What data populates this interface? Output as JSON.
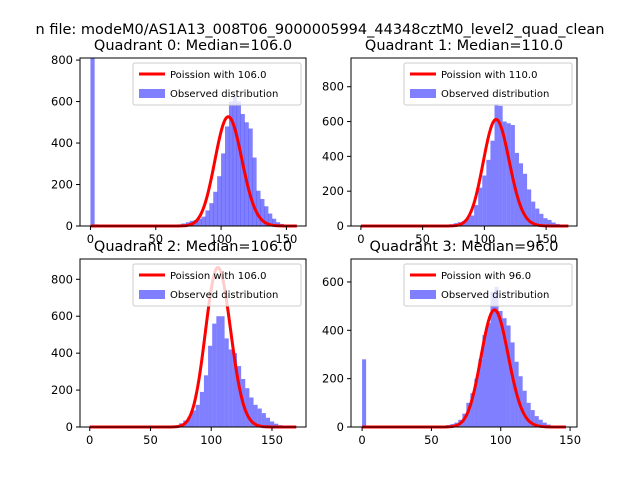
{
  "figure": {
    "suptitle": "n file: modeM0/AS1A13_008T06_9000005994_44348cztM0_level2_quad_clean"
  },
  "colors": {
    "fit_line": "#ff0000",
    "histogram": "#0000ff",
    "axes": "#000000"
  },
  "chart_data": [
    {
      "type": "bar",
      "title": "Quadrant 0: Median=106.0",
      "xlim": [
        -8,
        165
      ],
      "ylim": [
        0,
        810
      ],
      "xticks": [
        0,
        50,
        100,
        150
      ],
      "yticks": [
        0,
        200,
        400,
        600,
        800
      ],
      "legend_position": "top-right",
      "legend": [
        "Poission with 106.0",
        "Observed distribution"
      ],
      "bin_width": 3.2,
      "bins": [
        [
          0,
          810
        ],
        [
          3.2,
          8
        ],
        [
          60,
          3
        ],
        [
          63.2,
          5
        ],
        [
          66.4,
          8
        ],
        [
          69.6,
          12
        ],
        [
          73,
          18
        ],
        [
          76,
          25
        ],
        [
          79,
          28
        ],
        [
          82,
          35
        ],
        [
          85,
          45
        ],
        [
          88,
          75
        ],
        [
          91,
          110
        ],
        [
          94,
          165
        ],
        [
          97,
          240
        ],
        [
          100,
          350
        ],
        [
          103,
          480
        ],
        [
          106,
          600
        ],
        [
          109,
          630
        ],
        [
          112,
          600
        ],
        [
          115,
          540
        ],
        [
          118,
          500
        ],
        [
          121,
          470
        ],
        [
          124,
          330
        ],
        [
          127,
          170
        ],
        [
          130,
          130
        ],
        [
          133,
          95
        ],
        [
          136,
          60
        ],
        [
          139,
          35
        ],
        [
          142,
          18
        ],
        [
          145,
          10
        ],
        [
          148,
          5
        ],
        [
          151,
          3
        ],
        [
          154,
          2
        ]
      ],
      "poisson": {
        "name": "Poission with 106.0",
        "mean": 106.0,
        "scale": 13600,
        "x_range": [
          0,
          158
        ]
      }
    },
    {
      "type": "bar",
      "title": "Quadrant 1: Median=110.0",
      "xlim": [
        -8,
        175
      ],
      "ylim": [
        0,
        965
      ],
      "xticks": [
        0,
        50,
        100,
        150
      ],
      "yticks": [
        0,
        200,
        400,
        600,
        800
      ],
      "legend_position": "top-right",
      "legend": [
        "Poission with 110.0",
        "Observed distribution"
      ],
      "bin_width": 3.3,
      "bins": [
        [
          0,
          4
        ],
        [
          62,
          4
        ],
        [
          65.3,
          6
        ],
        [
          68.6,
          8
        ],
        [
          71.9,
          10
        ],
        [
          75.2,
          16
        ],
        [
          78.5,
          22
        ],
        [
          81.8,
          28
        ],
        [
          85.1,
          45
        ],
        [
          88.4,
          60
        ],
        [
          91.7,
          120
        ],
        [
          95,
          220
        ],
        [
          98.3,
          290
        ],
        [
          101.6,
          380
        ],
        [
          104.9,
          490
        ],
        [
          108.2,
          700
        ],
        [
          111.5,
          690
        ],
        [
          114.8,
          600
        ],
        [
          118.1,
          590
        ],
        [
          121.4,
          580
        ],
        [
          124.7,
          420
        ],
        [
          128,
          360
        ],
        [
          131.3,
          300
        ],
        [
          134.6,
          210
        ],
        [
          137.9,
          140
        ],
        [
          141.2,
          100
        ],
        [
          144.5,
          70
        ],
        [
          147.8,
          45
        ],
        [
          151.1,
          35
        ],
        [
          154.4,
          20
        ],
        [
          157.7,
          12
        ],
        [
          161,
          8
        ]
      ],
      "poisson": {
        "name": "Poission with 110.0",
        "mean": 110.0,
        "scale": 16100,
        "x_range": [
          0,
          168
        ]
      }
    },
    {
      "type": "bar",
      "title": "Quadrant 2: Median=106.0",
      "xlim": [
        -8,
        178
      ],
      "ylim": [
        0,
        910
      ],
      "xticks": [
        0,
        50,
        100,
        150
      ],
      "yticks": [
        0,
        200,
        400,
        600,
        800
      ],
      "legend_position": "top-right",
      "legend": [
        "Poission with 106.0",
        "Observed distribution"
      ],
      "bin_width": 3.4,
      "bins": [
        [
          0,
          3
        ],
        [
          60,
          3
        ],
        [
          63.4,
          4
        ],
        [
          66.8,
          6
        ],
        [
          70.2,
          10
        ],
        [
          73.6,
          20
        ],
        [
          77,
          35
        ],
        [
          80.4,
          55
        ],
        [
          83.8,
          90
        ],
        [
          87.2,
          120
        ],
        [
          90.6,
          190
        ],
        [
          94,
          280
        ],
        [
          97.4,
          440
        ],
        [
          100.8,
          560
        ],
        [
          104.2,
          600
        ],
        [
          107.6,
          600
        ],
        [
          111,
          480
        ],
        [
          114.4,
          420
        ],
        [
          117.8,
          400
        ],
        [
          121.2,
          330
        ],
        [
          124.6,
          260
        ],
        [
          128,
          210
        ],
        [
          131.4,
          160
        ],
        [
          134.8,
          120
        ],
        [
          138.2,
          100
        ],
        [
          141.6,
          75
        ],
        [
          145,
          50
        ],
        [
          148.4,
          30
        ],
        [
          151.8,
          18
        ],
        [
          155.2,
          10
        ],
        [
          158.6,
          6
        ],
        [
          162,
          3
        ]
      ],
      "poisson": {
        "name": "Poission with 106.0",
        "mean": 106.0,
        "scale": 22300,
        "x_range": [
          0,
          170
        ]
      }
    },
    {
      "type": "bar",
      "title": "Quadrant 3: Median=96.0",
      "xlim": [
        -8,
        155
      ],
      "ylim": [
        0,
        695
      ],
      "xticks": [
        0,
        50,
        100,
        150
      ],
      "yticks": [
        0,
        200,
        400,
        600
      ],
      "legend_position": "top-right",
      "legend": [
        "Poission with 96.0",
        "Observed distribution"
      ],
      "bin_width": 2.9,
      "bins": [
        [
          0,
          280
        ],
        [
          52,
          3
        ],
        [
          54.9,
          4
        ],
        [
          57.8,
          6
        ],
        [
          60.7,
          8
        ],
        [
          63.6,
          12
        ],
        [
          66.5,
          18
        ],
        [
          69.4,
          30
        ],
        [
          72.3,
          55
        ],
        [
          75.2,
          100
        ],
        [
          78.1,
          140
        ],
        [
          81,
          200
        ],
        [
          83.9,
          280
        ],
        [
          86.8,
          380
        ],
        [
          89.7,
          430
        ],
        [
          92.6,
          560
        ],
        [
          95.5,
          580
        ],
        [
          98.4,
          480
        ],
        [
          101.3,
          450
        ],
        [
          104.2,
          420
        ],
        [
          107.1,
          350
        ],
        [
          110,
          270
        ],
        [
          112.9,
          210
        ],
        [
          115.8,
          150
        ],
        [
          118.7,
          100
        ],
        [
          121.6,
          70
        ],
        [
          124.5,
          45
        ],
        [
          127.4,
          30
        ],
        [
          130.3,
          18
        ],
        [
          133.2,
          10
        ],
        [
          136.1,
          5
        ],
        [
          139,
          3
        ]
      ],
      "poisson": {
        "name": "Poission with 96.0",
        "mean": 96.0,
        "scale": 11900,
        "x_range": [
          0,
          147
        ]
      }
    }
  ]
}
